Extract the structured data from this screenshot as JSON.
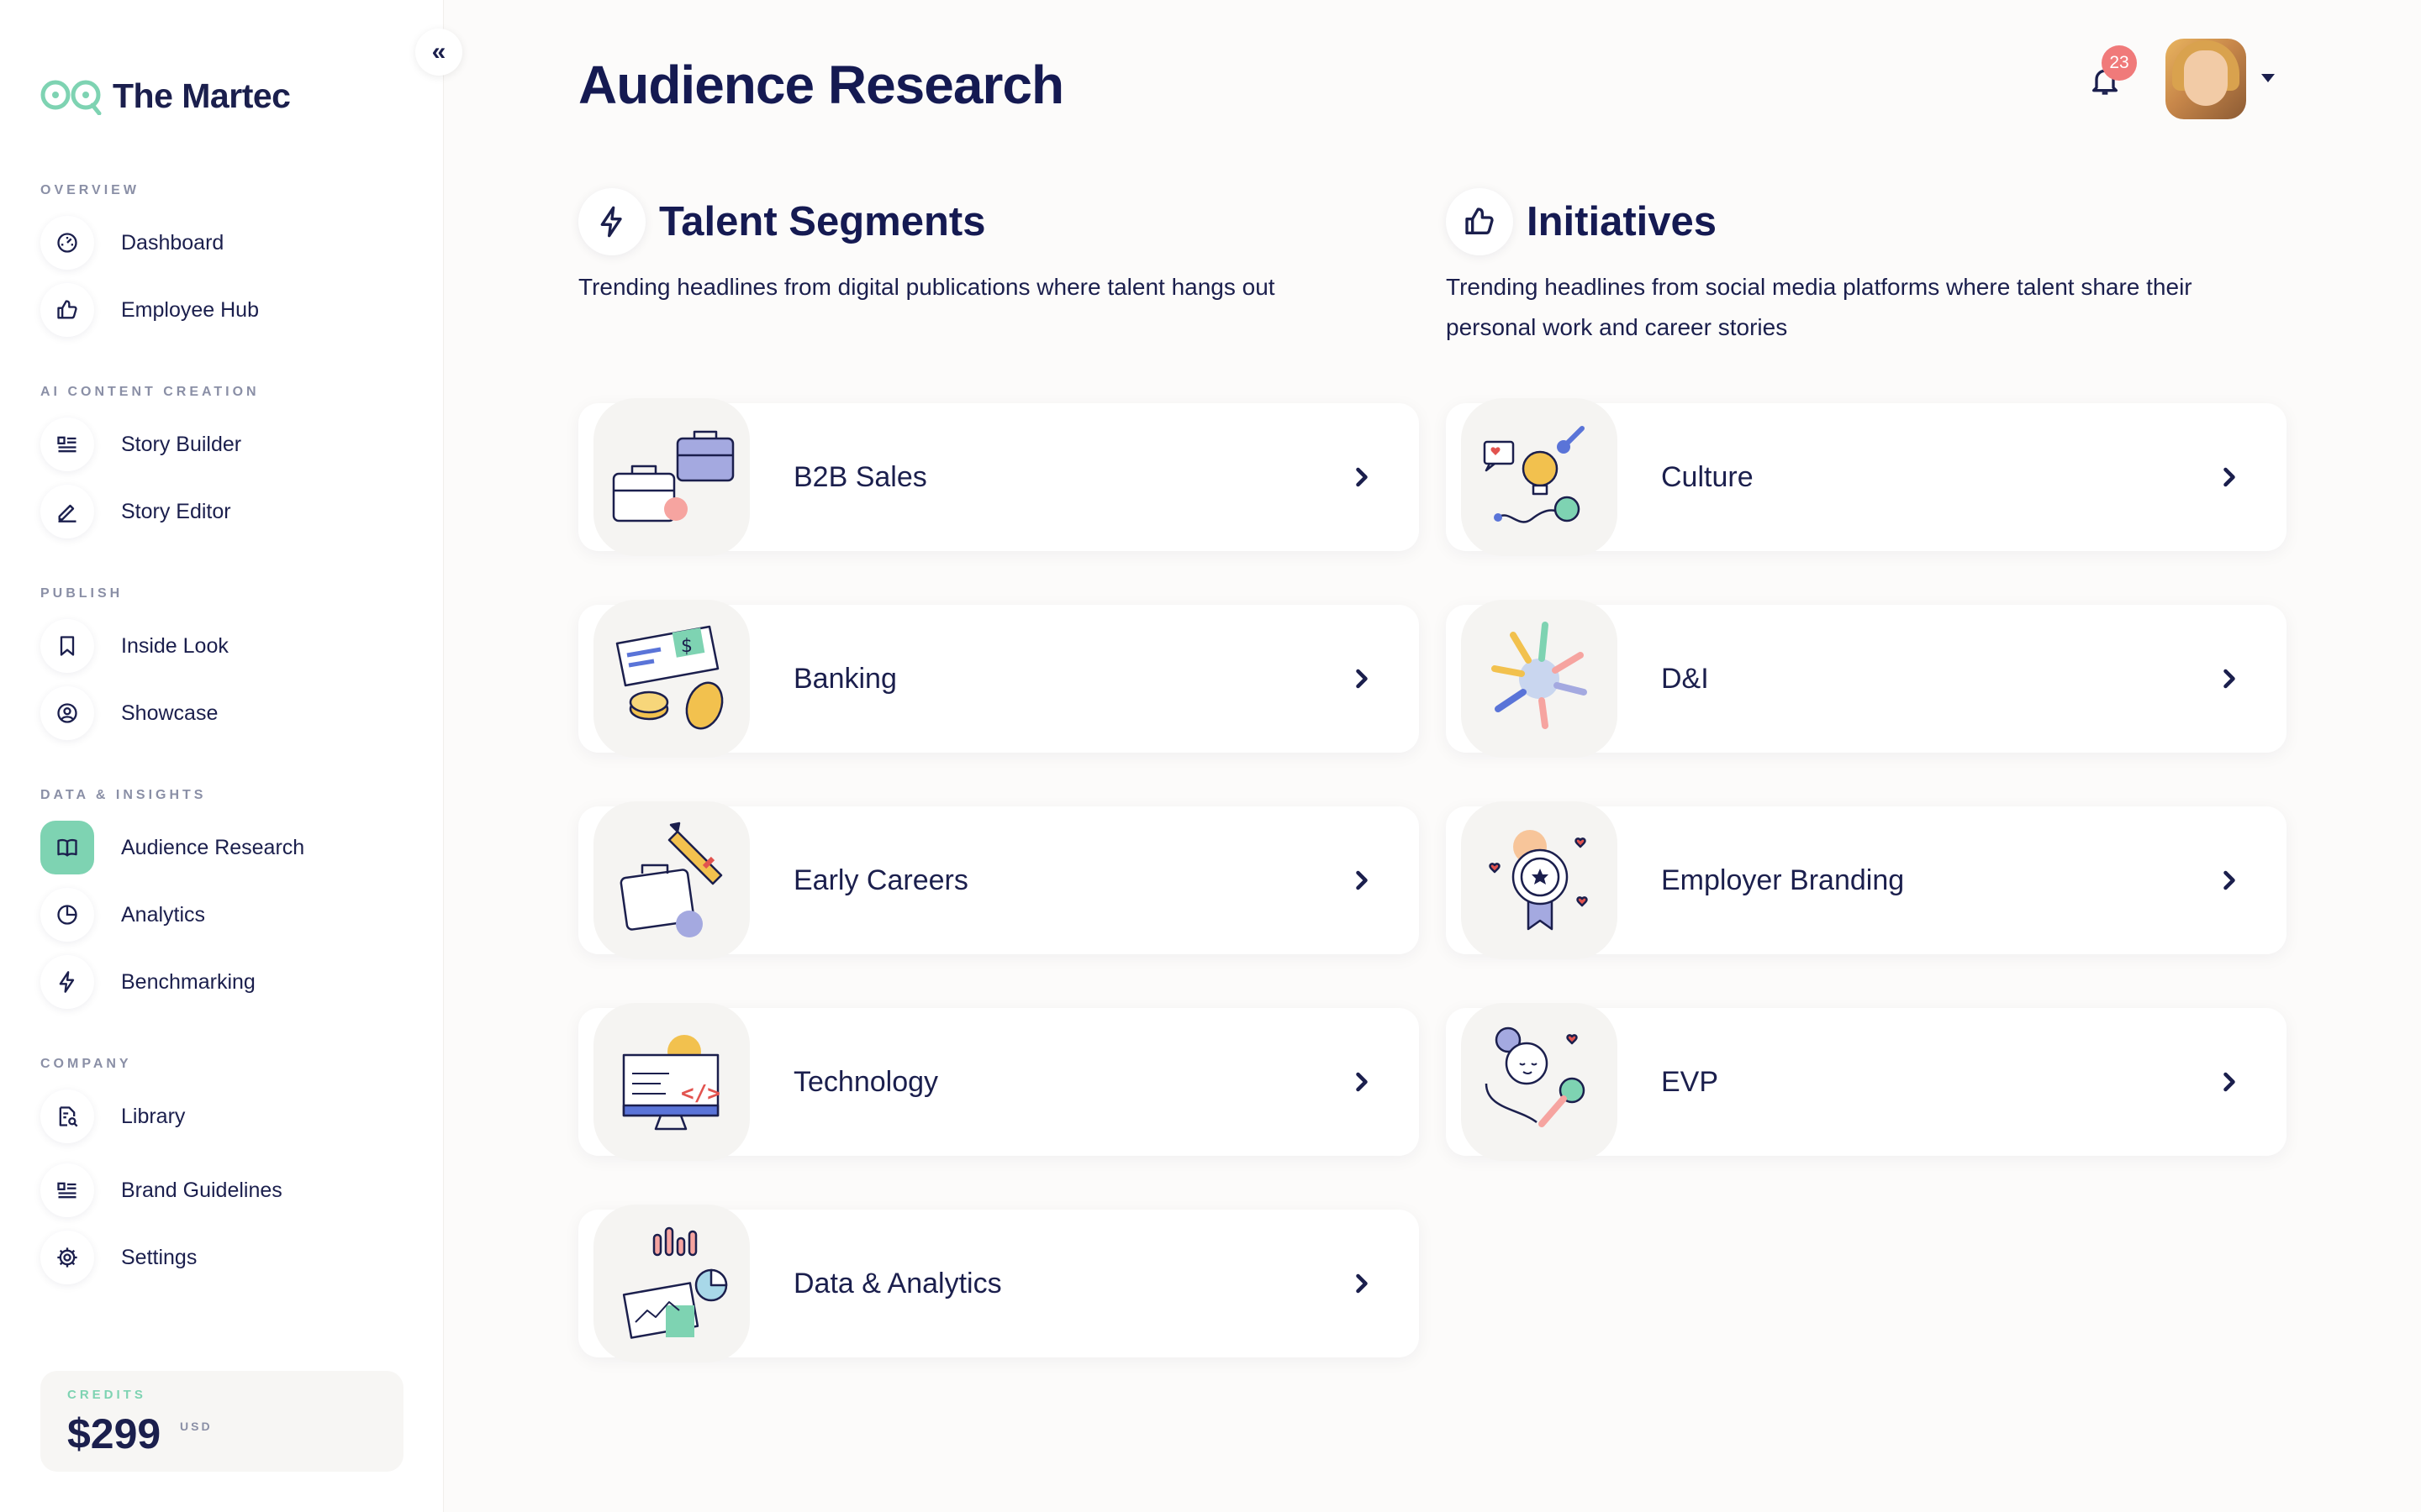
{
  "brand": {
    "name": "The Martec"
  },
  "sidebar": {
    "sections": [
      {
        "label": "OVERVIEW",
        "items": [
          {
            "label": "Dashboard",
            "icon": "dashboard-icon"
          },
          {
            "label": "Employee Hub",
            "icon": "thumbs-up-icon"
          }
        ]
      },
      {
        "label": "AI CONTENT CREATION",
        "items": [
          {
            "label": "Story Builder",
            "icon": "list-icon"
          },
          {
            "label": "Story Editor",
            "icon": "pencil-icon"
          }
        ]
      },
      {
        "label": "PUBLISH",
        "items": [
          {
            "label": "Inside Look",
            "icon": "bookmark-icon"
          },
          {
            "label": "Showcase",
            "icon": "user-circle-icon"
          }
        ]
      },
      {
        "label": "DATA & INSIGHTS",
        "items": [
          {
            "label": "Audience Research",
            "icon": "book-open-icon",
            "active": true
          },
          {
            "label": "Analytics",
            "icon": "pie-chart-icon"
          },
          {
            "label": "Benchmarking",
            "icon": "lightning-icon"
          }
        ]
      },
      {
        "label": "COMPANY",
        "items": [
          {
            "label": "Library",
            "icon": "document-search-icon"
          },
          {
            "label": "Brand Guidelines",
            "icon": "list-icon"
          },
          {
            "label": "Settings",
            "icon": "gear-icon"
          }
        ]
      }
    ],
    "credits": {
      "label": "CREDITS",
      "amount": "$299",
      "unit": "USD"
    }
  },
  "header": {
    "title": "Audience Research",
    "notifications_count": "23"
  },
  "talent_segments": {
    "title": "Talent Segments",
    "description": "Trending headlines from digital publications where talent hangs out",
    "cards": [
      {
        "label": "B2B Sales",
        "art": "briefcase-art"
      },
      {
        "label": "Banking",
        "art": "check-coins-art"
      },
      {
        "label": "Early Careers",
        "art": "briefcase-pen-art"
      },
      {
        "label": "Technology",
        "art": "monitor-code-art"
      },
      {
        "label": "Data & Analytics",
        "art": "charts-art"
      }
    ]
  },
  "initiatives": {
    "title": "Initiatives",
    "description": "Trending headlines from social media platforms where talent share their personal work and career stories",
    "cards": [
      {
        "label": "Culture",
        "art": "lightbulb-art"
      },
      {
        "label": "D&I",
        "art": "hands-circle-art"
      },
      {
        "label": "Employer Branding",
        "art": "award-ribbon-art"
      },
      {
        "label": "EVP",
        "art": "singer-mic-art"
      }
    ]
  },
  "colors": {
    "accent_green": "#7ed3b2",
    "navy": "#151a52",
    "badge_red": "#f07a7a"
  }
}
